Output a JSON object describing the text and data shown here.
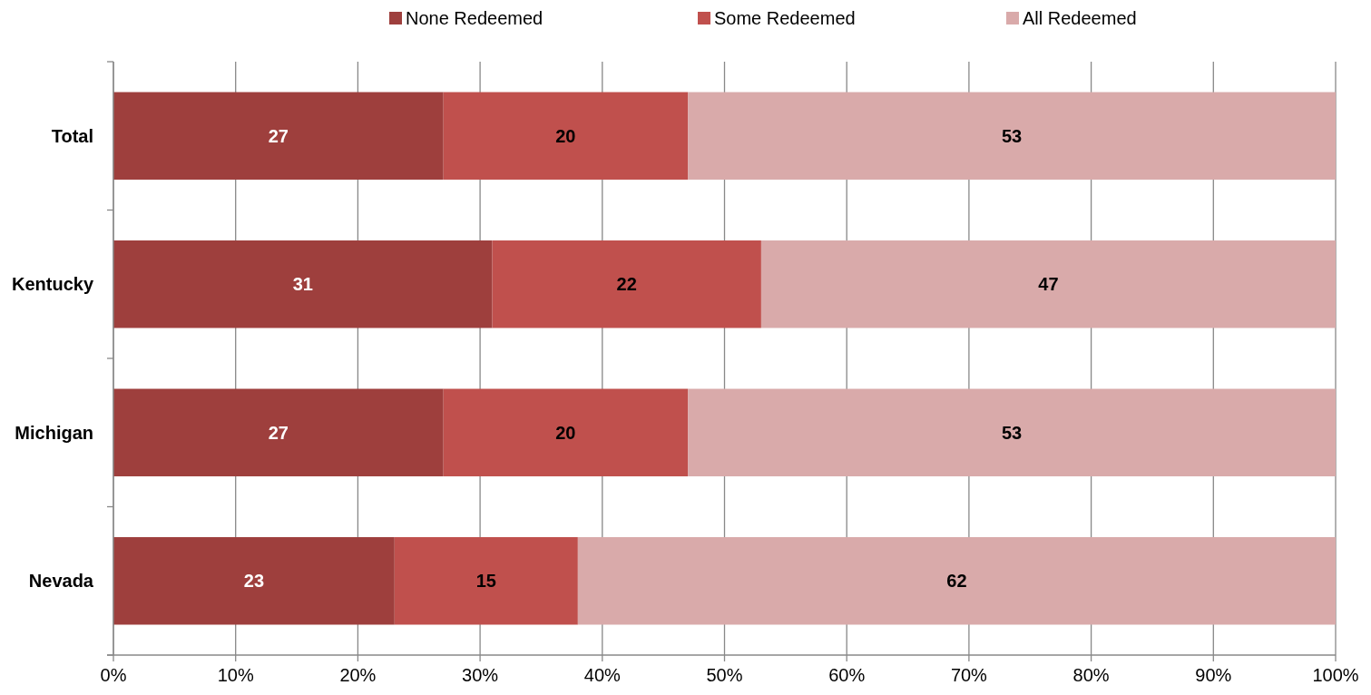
{
  "chart_data": {
    "type": "bar",
    "orientation": "horizontal",
    "stacked": true,
    "categories": [
      "Total",
      "Kentucky",
      "Michigan",
      "Nevada"
    ],
    "series": [
      {
        "name": "None Redeemed",
        "color": "#9e3f3d",
        "values": [
          27,
          31,
          27,
          23
        ]
      },
      {
        "name": "Some Redeemed",
        "color": "#c0504d",
        "values": [
          20,
          22,
          20,
          15
        ]
      },
      {
        "name": "All Redeemed",
        "color": "#d9aaaa",
        "values": [
          53,
          47,
          53,
          62
        ]
      }
    ],
    "xlim": [
      0,
      100
    ],
    "xticks": [
      {
        "value": 0,
        "label": "0%"
      },
      {
        "value": 10,
        "label": "10%"
      },
      {
        "value": 20,
        "label": "20%"
      },
      {
        "value": 30,
        "label": "30%"
      },
      {
        "value": 40,
        "label": "40%"
      },
      {
        "value": 50,
        "label": "50%"
      },
      {
        "value": 60,
        "label": "60%"
      },
      {
        "value": 70,
        "label": "70%"
      },
      {
        "value": 80,
        "label": "80%"
      },
      {
        "value": 90,
        "label": "90%"
      },
      {
        "value": 100,
        "label": "100%"
      }
    ],
    "grid": "x",
    "legend": "top",
    "data_labels": true
  }
}
